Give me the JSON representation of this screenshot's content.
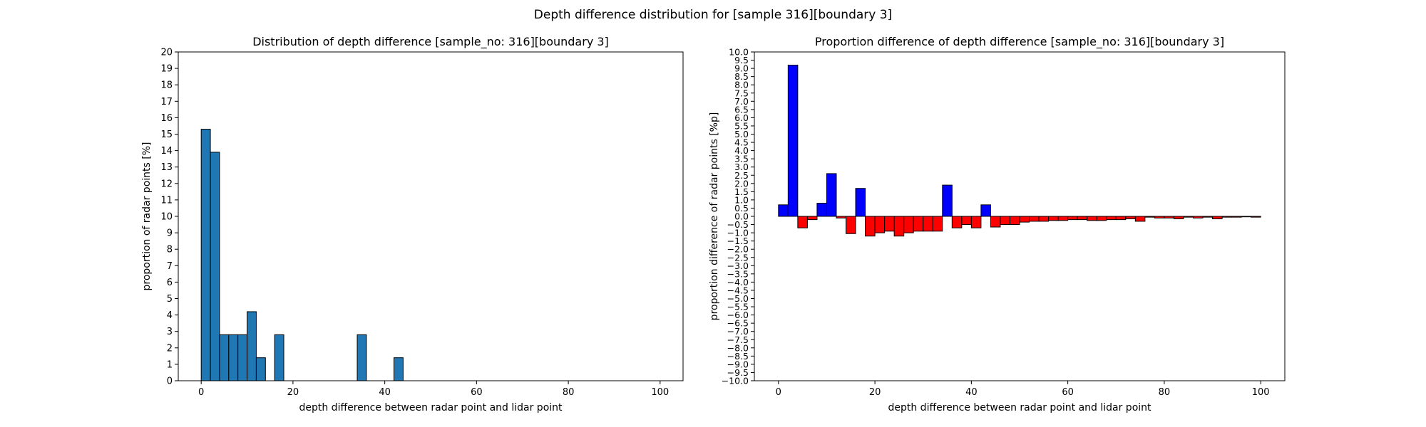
{
  "suptitle": "Depth difference distribution for [sample 316][boundary 3]",
  "colors": {
    "hist_bar": "#1f77b4",
    "positive_bar": "#0000ff",
    "negative_bar": "#ff0000",
    "edge": "#000000"
  },
  "chart_data": [
    {
      "type": "bar",
      "title": "Distribution of depth difference [sample_no: 316][boundary 3]",
      "xlabel": "depth difference between radar point and lidar point",
      "ylabel": "proportion of radar points [%]",
      "xlim": [
        -5,
        105
      ],
      "ylim": [
        0,
        20
      ],
      "xticks": [
        0,
        20,
        40,
        60,
        80,
        100
      ],
      "yticks": [
        0,
        1,
        2,
        3,
        4,
        5,
        6,
        7,
        8,
        9,
        10,
        11,
        12,
        13,
        14,
        15,
        16,
        17,
        18,
        19,
        20
      ],
      "bin_width": 2,
      "bins": [
        {
          "x": 0,
          "value": 15.3
        },
        {
          "x": 2,
          "value": 13.9
        },
        {
          "x": 4,
          "value": 2.8
        },
        {
          "x": 6,
          "value": 2.8
        },
        {
          "x": 8,
          "value": 2.8
        },
        {
          "x": 10,
          "value": 4.2
        },
        {
          "x": 12,
          "value": 1.4
        },
        {
          "x": 16,
          "value": 2.8
        },
        {
          "x": 34,
          "value": 2.8
        },
        {
          "x": 42,
          "value": 1.4
        }
      ]
    },
    {
      "type": "bar",
      "title": "Proportion difference of depth difference [sample_no: 316][boundary 3]",
      "xlabel": "depth difference between radar point and lidar point",
      "ylabel": "proportion difference of radar points [%p]",
      "xlim": [
        -5,
        105
      ],
      "ylim": [
        -10,
        10
      ],
      "xticks": [
        0,
        20,
        40,
        60,
        80,
        100
      ],
      "ytick_step": 0.5,
      "bin_width": 2,
      "bins": [
        {
          "x": 0,
          "value": 0.7
        },
        {
          "x": 2,
          "value": 9.2
        },
        {
          "x": 4,
          "value": -0.7
        },
        {
          "x": 6,
          "value": -0.2
        },
        {
          "x": 8,
          "value": 0.8
        },
        {
          "x": 10,
          "value": 2.6
        },
        {
          "x": 12,
          "value": -0.1
        },
        {
          "x": 14,
          "value": -1.05
        },
        {
          "x": 16,
          "value": 1.7
        },
        {
          "x": 18,
          "value": -1.2
        },
        {
          "x": 20,
          "value": -1.0
        },
        {
          "x": 22,
          "value": -0.9
        },
        {
          "x": 24,
          "value": -1.2
        },
        {
          "x": 26,
          "value": -1.0
        },
        {
          "x": 28,
          "value": -0.9
        },
        {
          "x": 30,
          "value": -0.9
        },
        {
          "x": 32,
          "value": -0.9
        },
        {
          "x": 34,
          "value": 1.9
        },
        {
          "x": 36,
          "value": -0.7
        },
        {
          "x": 38,
          "value": -0.5
        },
        {
          "x": 40,
          "value": -0.7
        },
        {
          "x": 42,
          "value": 0.7
        },
        {
          "x": 44,
          "value": -0.65
        },
        {
          "x": 46,
          "value": -0.5
        },
        {
          "x": 48,
          "value": -0.5
        },
        {
          "x": 50,
          "value": -0.35
        },
        {
          "x": 52,
          "value": -0.3
        },
        {
          "x": 54,
          "value": -0.3
        },
        {
          "x": 56,
          "value": -0.25
        },
        {
          "x": 58,
          "value": -0.25
        },
        {
          "x": 60,
          "value": -0.2
        },
        {
          "x": 62,
          "value": -0.2
        },
        {
          "x": 64,
          "value": -0.25
        },
        {
          "x": 66,
          "value": -0.25
        },
        {
          "x": 68,
          "value": -0.2
        },
        {
          "x": 70,
          "value": -0.2
        },
        {
          "x": 72,
          "value": -0.15
        },
        {
          "x": 74,
          "value": -0.3
        },
        {
          "x": 76,
          "value": -0.05
        },
        {
          "x": 78,
          "value": -0.1
        },
        {
          "x": 80,
          "value": -0.1
        },
        {
          "x": 82,
          "value": -0.15
        },
        {
          "x": 84,
          "value": -0.05
        },
        {
          "x": 86,
          "value": -0.1
        },
        {
          "x": 88,
          "value": -0.05
        },
        {
          "x": 90,
          "value": -0.15
        },
        {
          "x": 92,
          "value": -0.05
        },
        {
          "x": 94,
          "value": -0.05
        },
        {
          "x": 96,
          "value": -0.03
        },
        {
          "x": 98,
          "value": -0.05
        }
      ]
    }
  ]
}
